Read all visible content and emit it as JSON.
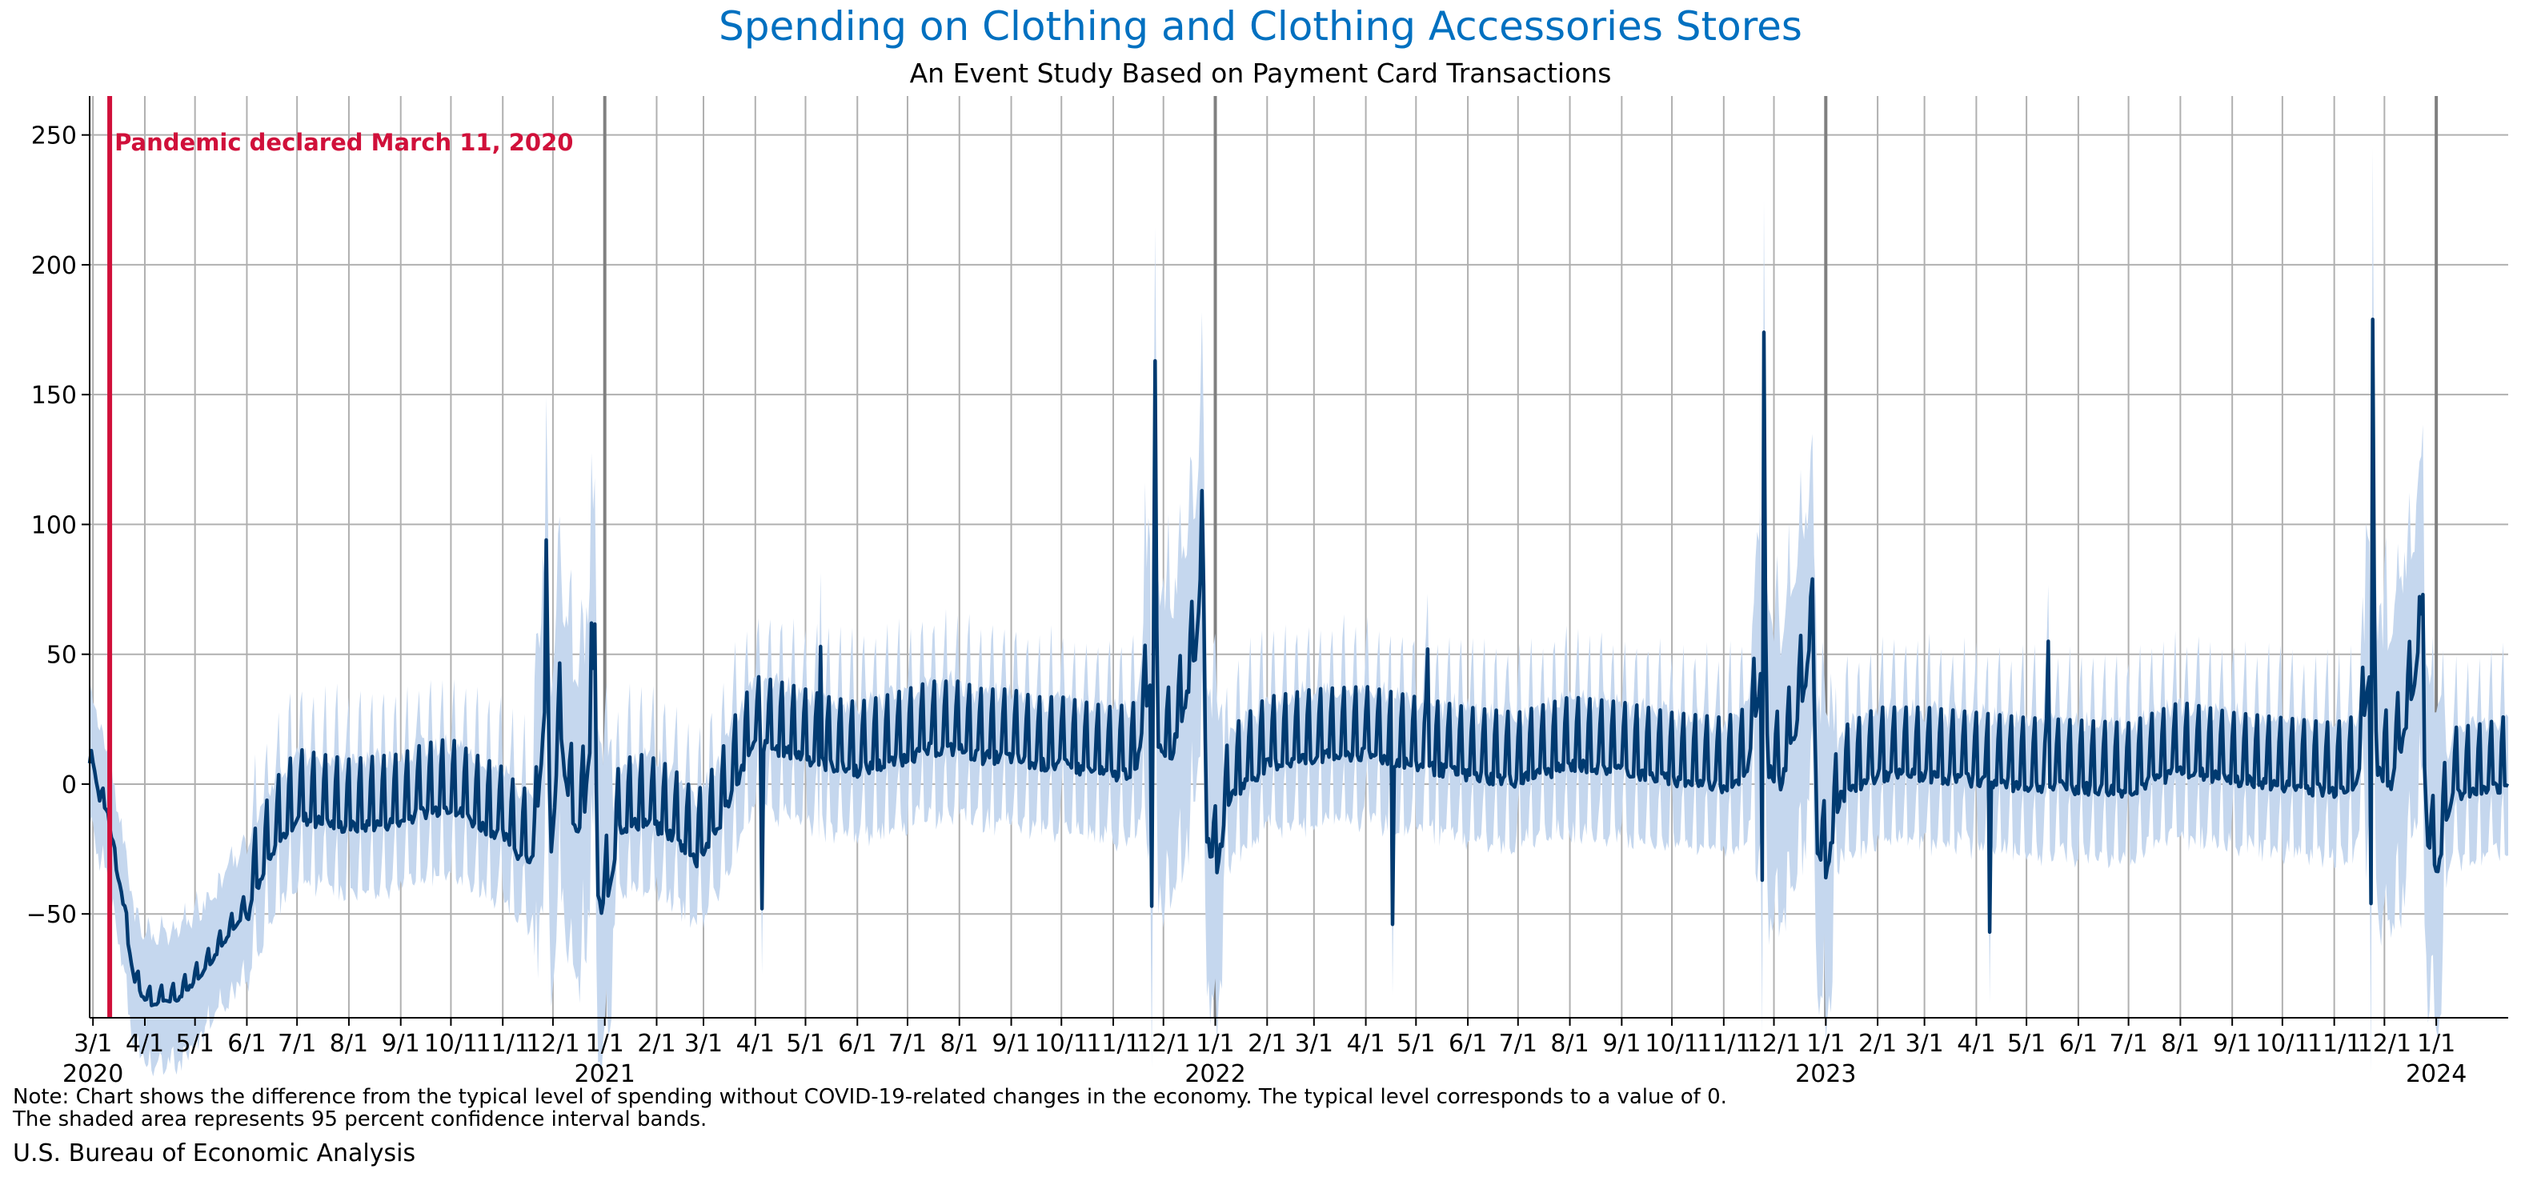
{
  "chart_data": {
    "type": "line",
    "title": "Spending on Clothing and Clothing Accessories Stores",
    "subtitle": "An Event Study Based on Payment Card Transactions",
    "xlabel": "",
    "ylabel": "",
    "ylim": [
      -90,
      265
    ],
    "y_ticks": [
      -50,
      0,
      50,
      100,
      150,
      200,
      250
    ],
    "xlim": [
      "2020-02-28",
      "2024-02-13"
    ],
    "x_ticks": [
      {
        "date": "2020-03-01",
        "label": "3/1"
      },
      {
        "date": "2020-04-01",
        "label": "4/1"
      },
      {
        "date": "2020-05-01",
        "label": "5/1"
      },
      {
        "date": "2020-06-01",
        "label": "6/1"
      },
      {
        "date": "2020-07-01",
        "label": "7/1"
      },
      {
        "date": "2020-08-01",
        "label": "8/1"
      },
      {
        "date": "2020-09-01",
        "label": "9/1"
      },
      {
        "date": "2020-10-01",
        "label": "10/1"
      },
      {
        "date": "2020-11-01",
        "label": "11/1"
      },
      {
        "date": "2020-12-01",
        "label": "12/1"
      },
      {
        "date": "2021-01-01",
        "label": "1/1"
      },
      {
        "date": "2021-02-01",
        "label": "2/1"
      },
      {
        "date": "2021-03-01",
        "label": "3/1"
      },
      {
        "date": "2021-04-01",
        "label": "4/1"
      },
      {
        "date": "2021-05-01",
        "label": "5/1"
      },
      {
        "date": "2021-06-01",
        "label": "6/1"
      },
      {
        "date": "2021-07-01",
        "label": "7/1"
      },
      {
        "date": "2021-08-01",
        "label": "8/1"
      },
      {
        "date": "2021-09-01",
        "label": "9/1"
      },
      {
        "date": "2021-10-01",
        "label": "10/1"
      },
      {
        "date": "2021-11-01",
        "label": "11/1"
      },
      {
        "date": "2021-12-01",
        "label": "12/1"
      },
      {
        "date": "2022-01-01",
        "label": "1/1"
      },
      {
        "date": "2022-02-01",
        "label": "2/1"
      },
      {
        "date": "2022-03-01",
        "label": "3/1"
      },
      {
        "date": "2022-04-01",
        "label": "4/1"
      },
      {
        "date": "2022-05-01",
        "label": "5/1"
      },
      {
        "date": "2022-06-01",
        "label": "6/1"
      },
      {
        "date": "2022-07-01",
        "label": "7/1"
      },
      {
        "date": "2022-08-01",
        "label": "8/1"
      },
      {
        "date": "2022-09-01",
        "label": "9/1"
      },
      {
        "date": "2022-10-01",
        "label": "10/1"
      },
      {
        "date": "2022-11-01",
        "label": "11/1"
      },
      {
        "date": "2022-12-01",
        "label": "12/1"
      },
      {
        "date": "2023-01-01",
        "label": "1/1"
      },
      {
        "date": "2023-02-01",
        "label": "2/1"
      },
      {
        "date": "2023-03-01",
        "label": "3/1"
      },
      {
        "date": "2023-04-01",
        "label": "4/1"
      },
      {
        "date": "2023-05-01",
        "label": "5/1"
      },
      {
        "date": "2023-06-01",
        "label": "6/1"
      },
      {
        "date": "2023-07-01",
        "label": "7/1"
      },
      {
        "date": "2023-08-01",
        "label": "8/1"
      },
      {
        "date": "2023-09-01",
        "label": "9/1"
      },
      {
        "date": "2023-10-01",
        "label": "10/1"
      },
      {
        "date": "2023-11-01",
        "label": "11/1"
      },
      {
        "date": "2023-12-01",
        "label": "12/1"
      },
      {
        "date": "2024-01-01",
        "label": "1/1"
      }
    ],
    "year_labels": [
      {
        "date": "2020-03-01",
        "label": "2020"
      },
      {
        "date": "2021-01-01",
        "label": "2021"
      },
      {
        "date": "2022-01-01",
        "label": "2022"
      },
      {
        "date": "2023-01-01",
        "label": "2023"
      },
      {
        "date": "2024-01-01",
        "label": "2024"
      }
    ],
    "event": {
      "date": "2020-03-11",
      "label": "Pandemic declared March 11, 2020",
      "color": "#d0103a"
    },
    "grid": true,
    "legend": "none",
    "series": [
      {
        "points": [
          [
            "2020-02-28",
            5
          ],
          [
            "2020-03-01",
            10
          ],
          [
            "2020-03-05",
            -5
          ],
          [
            "2020-03-10",
            -10
          ],
          [
            "2020-03-14",
            -30
          ],
          [
            "2020-03-18",
            -40
          ],
          [
            "2020-03-22",
            -60
          ],
          [
            "2020-03-26",
            -75
          ],
          [
            "2020-03-30",
            -80
          ],
          [
            "2020-04-05",
            -84
          ],
          [
            "2020-04-10",
            -83
          ],
          [
            "2020-04-20",
            -82
          ],
          [
            "2020-05-01",
            -75
          ],
          [
            "2020-05-10",
            -68
          ],
          [
            "2020-05-20",
            -58
          ],
          [
            "2020-06-01",
            -47
          ],
          [
            "2020-06-10",
            -32
          ],
          [
            "2020-06-20",
            -18
          ],
          [
            "2020-07-01",
            -8
          ],
          [
            "2020-07-15",
            -10
          ],
          [
            "2020-08-01",
            -12
          ],
          [
            "2020-08-15",
            -11
          ],
          [
            "2020-09-01",
            -10
          ],
          [
            "2020-09-15",
            -6
          ],
          [
            "2020-10-01",
            -4
          ],
          [
            "2020-10-15",
            -10
          ],
          [
            "2020-11-01",
            -15
          ],
          [
            "2020-11-10",
            -22
          ],
          [
            "2020-11-20",
            -25
          ],
          [
            "2020-11-27",
            45
          ],
          [
            "2020-11-30",
            -20
          ],
          [
            "2020-12-05",
            25
          ],
          [
            "2020-12-10",
            0
          ],
          [
            "2020-12-15",
            -15
          ],
          [
            "2020-12-20",
            -5
          ],
          [
            "2020-12-26",
            40
          ],
          [
            "2020-12-28",
            -40
          ],
          [
            "2021-01-01",
            -45
          ],
          [
            "2021-01-10",
            -12
          ],
          [
            "2021-01-25",
            -10
          ],
          [
            "2021-02-10",
            -15
          ],
          [
            "2021-02-25",
            -25
          ],
          [
            "2021-03-10",
            -12
          ],
          [
            "2021-03-20",
            5
          ],
          [
            "2021-04-01",
            20
          ],
          [
            "2021-04-15",
            18
          ],
          [
            "2021-05-01",
            15
          ],
          [
            "2021-05-15",
            12
          ],
          [
            "2021-06-01",
            10
          ],
          [
            "2021-06-15",
            12
          ],
          [
            "2021-07-01",
            15
          ],
          [
            "2021-07-15",
            18
          ],
          [
            "2021-08-01",
            18
          ],
          [
            "2021-08-15",
            15
          ],
          [
            "2021-09-01",
            15
          ],
          [
            "2021-09-15",
            12
          ],
          [
            "2021-10-01",
            12
          ],
          [
            "2021-10-15",
            10
          ],
          [
            "2021-11-01",
            8
          ],
          [
            "2021-11-15",
            10
          ],
          [
            "2021-11-26",
            58
          ],
          [
            "2021-11-28",
            20
          ],
          [
            "2021-12-05",
            15
          ],
          [
            "2021-12-12",
            30
          ],
          [
            "2021-12-20",
            55
          ],
          [
            "2021-12-24",
            90
          ],
          [
            "2021-12-27",
            -15
          ],
          [
            "2022-01-01",
            -30
          ],
          [
            "2022-01-10",
            0
          ],
          [
            "2022-02-01",
            12
          ],
          [
            "2022-03-01",
            15
          ],
          [
            "2022-04-01",
            16
          ],
          [
            "2022-05-01",
            12
          ],
          [
            "2022-06-01",
            8
          ],
          [
            "2022-07-01",
            6
          ],
          [
            "2022-08-01",
            12
          ],
          [
            "2022-09-01",
            10
          ],
          [
            "2022-10-01",
            6
          ],
          [
            "2022-11-01",
            4
          ],
          [
            "2022-11-15",
            8
          ],
          [
            "2022-11-25",
            55
          ],
          [
            "2022-11-28",
            10
          ],
          [
            "2022-12-05",
            5
          ],
          [
            "2022-12-12",
            20
          ],
          [
            "2022-12-20",
            45
          ],
          [
            "2022-12-24",
            65
          ],
          [
            "2022-12-27",
            -20
          ],
          [
            "2023-01-01",
            -30
          ],
          [
            "2023-01-10",
            0
          ],
          [
            "2023-02-01",
            8
          ],
          [
            "2023-03-01",
            8
          ],
          [
            "2023-04-01",
            6
          ],
          [
            "2023-05-01",
            4
          ],
          [
            "2023-06-01",
            3
          ],
          [
            "2023-07-01",
            2
          ],
          [
            "2023-08-01",
            10
          ],
          [
            "2023-09-01",
            6
          ],
          [
            "2023-10-01",
            4
          ],
          [
            "2023-11-01",
            2
          ],
          [
            "2023-11-15",
            5
          ],
          [
            "2023-11-24",
            60
          ],
          [
            "2023-11-27",
            10
          ],
          [
            "2023-12-05",
            5
          ],
          [
            "2023-12-12",
            20
          ],
          [
            "2023-12-18",
            40
          ],
          [
            "2023-12-22",
            60
          ],
          [
            "2023-12-27",
            -20
          ],
          [
            "2024-01-01",
            -30
          ],
          [
            "2024-01-10",
            0
          ],
          [
            "2024-02-01",
            2
          ],
          [
            "2024-02-13",
            5
          ]
        ],
        "spikes": [
          [
            "2020-11-27",
            94
          ],
          [
            "2020-12-24",
            62
          ],
          [
            "2021-04-05",
            -48
          ],
          [
            "2021-05-10",
            53
          ],
          [
            "2021-11-26",
            163
          ],
          [
            "2021-11-24",
            -47
          ],
          [
            "2021-12-24",
            113
          ],
          [
            "2022-04-17",
            -54
          ],
          [
            "2022-05-08",
            52
          ],
          [
            "2022-11-25",
            174
          ],
          [
            "2022-11-24",
            -37
          ],
          [
            "2022-12-24",
            79
          ],
          [
            "2023-04-09",
            -57
          ],
          [
            "2023-05-14",
            55
          ],
          [
            "2023-11-24",
            179
          ],
          [
            "2023-11-23",
            -46
          ],
          [
            "2023-12-24",
            73
          ]
        ],
        "weekly_amplitude": 18,
        "confidence_band": {
          "half_width": 25,
          "holiday_half_width": 60
        }
      }
    ],
    "colors": {
      "line": "#003a70",
      "band": "#c5d7ee",
      "grid": "#b0b0b0",
      "year_line": "#808080"
    }
  },
  "notes": {
    "line1": "Note: Chart shows the difference from the typical level of spending without COVID-19-related changes in the economy. The typical level corresponds to a value of 0.",
    "line2": "The shaded area represents 95 percent confidence interval bands."
  },
  "source": "U.S. Bureau of Economic Analysis"
}
